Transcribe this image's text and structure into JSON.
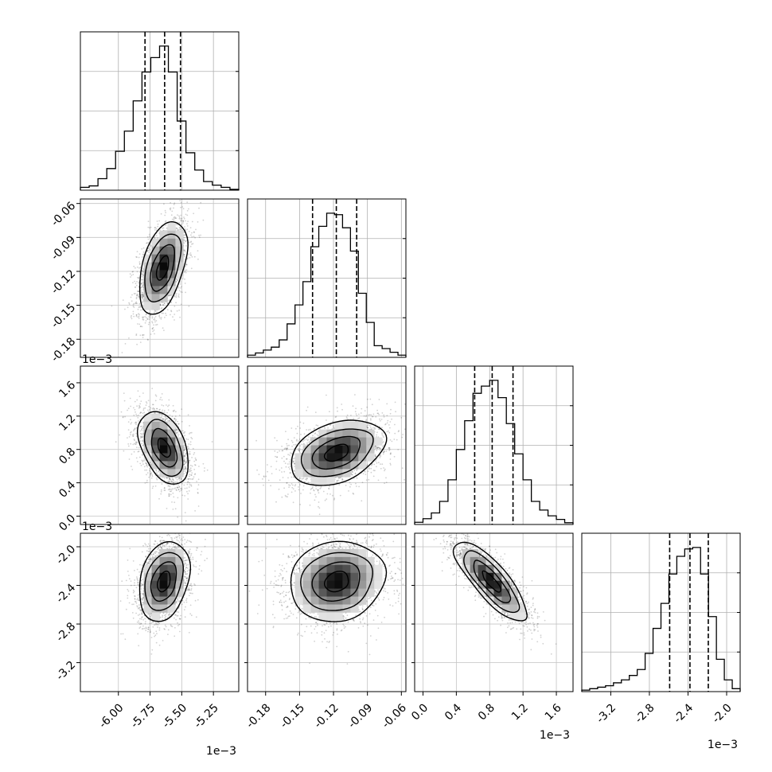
{
  "chart_data": {
    "type": "corner",
    "n_params": 4,
    "grid": true,
    "params": [
      {
        "ticks": [
          "-6.00",
          "-5.75",
          "-5.50",
          "-5.25"
        ],
        "tick_values": [
          -6.0,
          -5.75,
          -5.5,
          -5.25
        ],
        "range": [
          -6.3,
          -5.05
        ],
        "offset": "1e−3",
        "quantiles": [
          -5.79,
          -5.635,
          -5.51
        ],
        "hist": [
          0.02,
          0.03,
          0.08,
          0.15,
          0.27,
          0.41,
          0.62,
          0.82,
          0.92,
          1.0,
          0.82,
          0.48,
          0.26,
          0.14,
          0.06,
          0.035,
          0.02,
          0.006
        ]
      },
      {
        "ticks": [
          "-0.18",
          "-0.15",
          "-0.12",
          "-0.09",
          "-0.06"
        ],
        "tick_values": [
          -0.18,
          -0.15,
          -0.12,
          -0.09,
          -0.06
        ],
        "range": [
          -0.196,
          -0.056
        ],
        "offset": "",
        "quantiles": [
          -0.1385,
          -0.1175,
          -0.0995
        ],
        "hist": [
          0.015,
          0.03,
          0.05,
          0.07,
          0.12,
          0.23,
          0.36,
          0.52,
          0.76,
          0.9,
          0.99,
          0.98,
          0.89,
          0.73,
          0.44,
          0.24,
          0.08,
          0.06,
          0.035,
          0.015
        ]
      },
      {
        "ticks": [
          "0.0",
          "0.4",
          "0.8",
          "1.2",
          "1.6"
        ],
        "tick_values": [
          0.0,
          0.4,
          0.8,
          1.2,
          1.6
        ],
        "range": [
          -0.1,
          1.8
        ],
        "offset": "1e−3",
        "quantiles": [
          0.62,
          0.83,
          1.08
        ],
        "hist": [
          0.015,
          0.04,
          0.08,
          0.16,
          0.31,
          0.52,
          0.72,
          0.91,
          0.96,
          1.0,
          0.88,
          0.7,
          0.49,
          0.31,
          0.16,
          0.1,
          0.06,
          0.035,
          0.012
        ]
      },
      {
        "ticks": [
          "-3.2",
          "-2.8",
          "-2.4",
          "-2.0"
        ],
        "tick_values": [
          -3.2,
          -2.8,
          -2.4,
          -2.0
        ],
        "range": [
          -3.5,
          -1.86
        ],
        "offset": "1e−3",
        "quantiles": [
          -2.59,
          -2.38,
          -2.19
        ],
        "hist": [
          0.01,
          0.02,
          0.03,
          0.04,
          0.06,
          0.08,
          0.11,
          0.15,
          0.26,
          0.43,
          0.6,
          0.8,
          0.92,
          0.97,
          0.98,
          0.8,
          0.51,
          0.22,
          0.08,
          0.02
        ]
      }
    ],
    "pairs": [
      {
        "row": 1,
        "col": 0,
        "mean": [
          -5.65,
          -0.117
        ],
        "sd": [
          0.095,
          0.021
        ],
        "rho": 0.48
      },
      {
        "row": 2,
        "col": 0,
        "mean": [
          -5.64,
          0.82
        ],
        "sd": [
          0.1,
          0.22
        ],
        "rho": -0.45
      },
      {
        "row": 2,
        "col": 1,
        "mean": [
          -0.117,
          0.76
        ],
        "sd": [
          0.021,
          0.2
        ],
        "rho": 0.4
      },
      {
        "row": 3,
        "col": 0,
        "mean": [
          -5.64,
          -2.36
        ],
        "sd": [
          0.1,
          0.21
        ],
        "rho": 0.3
      },
      {
        "row": 3,
        "col": 1,
        "mean": [
          -0.117,
          -2.36
        ],
        "sd": [
          0.021,
          0.21
        ],
        "rho": 0.15
      },
      {
        "row": 3,
        "col": 2,
        "mean": [
          0.82,
          -2.36
        ],
        "sd": [
          0.22,
          0.21
        ],
        "rho": -0.82
      }
    ]
  }
}
